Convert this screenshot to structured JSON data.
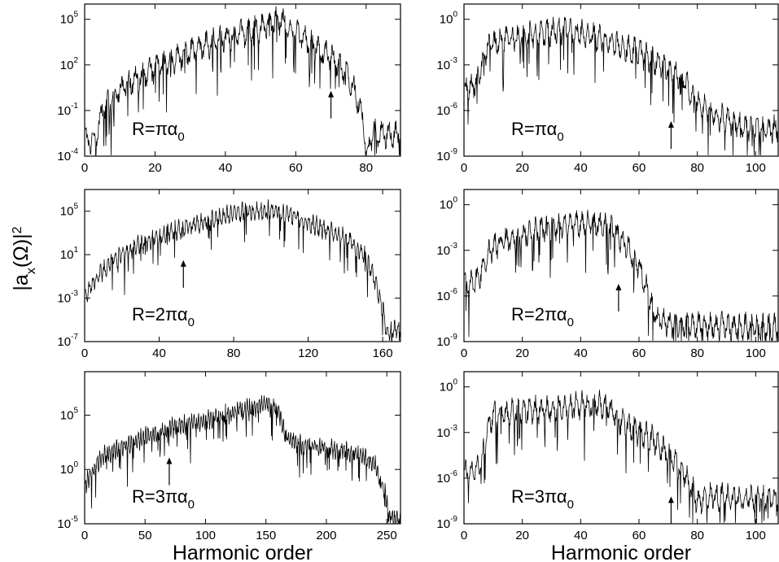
{
  "figure": {
    "ylabel": "|a_x(Ω)|²",
    "xlabel": "Harmonic order"
  },
  "chart_data": [
    {
      "type": "line",
      "panel": "left-top",
      "label": "R=πα0",
      "xlim": [
        0,
        90
      ],
      "x_ticks": [
        0,
        20,
        40,
        60,
        80
      ],
      "ylim_exp": [
        -4,
        6
      ],
      "y_tick_exps": [
        -4,
        -1,
        2,
        5
      ],
      "y_scale": "log",
      "arrow": {
        "x": 70,
        "y_exp": 0.3
      },
      "envelope": [
        [
          0,
          -3
        ],
        [
          3,
          -3
        ],
        [
          5,
          -1
        ],
        [
          10,
          0.4
        ],
        [
          20,
          1.8
        ],
        [
          30,
          2.9
        ],
        [
          40,
          3.8
        ],
        [
          50,
          4.4
        ],
        [
          55,
          5
        ],
        [
          58,
          4.5
        ],
        [
          65,
          3.3
        ],
        [
          70,
          2.5
        ],
        [
          75,
          1.2
        ],
        [
          78,
          -0.5
        ],
        [
          79.5,
          -2
        ],
        [
          80,
          -4
        ],
        [
          82,
          -2.5
        ],
        [
          85,
          -2.6
        ],
        [
          90,
          -2.6
        ]
      ]
    },
    {
      "type": "line",
      "panel": "right-top",
      "label": "R=πα0",
      "xlim": [
        0,
        108
      ],
      "x_ticks": [
        0,
        20,
        40,
        60,
        80,
        100
      ],
      "ylim_exp": [
        -9,
        1
      ],
      "y_tick_exps": [
        -9,
        -6,
        -3,
        0
      ],
      "y_scale": "log",
      "arrow": {
        "x": 71,
        "y_exp": -6.7
      },
      "envelope": [
        [
          0,
          -4.6
        ],
        [
          4,
          -4.3
        ],
        [
          6,
          -3
        ],
        [
          8,
          -1.8
        ],
        [
          15,
          -1.3
        ],
        [
          25,
          -1
        ],
        [
          35,
          -0.7
        ],
        [
          40,
          -0.9
        ],
        [
          50,
          -1.5
        ],
        [
          60,
          -2.2
        ],
        [
          70,
          -3.2
        ],
        [
          75,
          -4
        ],
        [
          80,
          -5.4
        ],
        [
          85,
          -6.3
        ],
        [
          90,
          -6.6
        ],
        [
          95,
          -7
        ],
        [
          100,
          -7.2
        ],
        [
          108,
          -7.2
        ]
      ]
    },
    {
      "type": "line",
      "panel": "left-middle",
      "label": "R=2πα0",
      "xlim": [
        0,
        170
      ],
      "x_ticks": [
        0,
        40,
        80,
        120,
        160
      ],
      "ylim_exp": [
        -7,
        7
      ],
      "y_tick_exps": [
        -7,
        -3,
        1,
        5
      ],
      "y_scale": "log",
      "arrow": {
        "x": 53,
        "y_exp": 0.5
      },
      "envelope": [
        [
          0,
          -2.8
        ],
        [
          5,
          -1.5
        ],
        [
          15,
          0.5
        ],
        [
          30,
          2
        ],
        [
          45,
          3
        ],
        [
          55,
          3.6
        ],
        [
          70,
          4.3
        ],
        [
          85,
          5
        ],
        [
          100,
          5.1
        ],
        [
          110,
          4.7
        ],
        [
          120,
          4
        ],
        [
          130,
          3.2
        ],
        [
          140,
          2.5
        ],
        [
          150,
          1
        ],
        [
          155,
          -1
        ],
        [
          160,
          -4
        ],
        [
          162,
          -6
        ],
        [
          165,
          -6
        ],
        [
          170,
          -6
        ]
      ]
    },
    {
      "type": "line",
      "panel": "right-middle",
      "label": "R=2πα0",
      "xlim": [
        0,
        108
      ],
      "x_ticks": [
        0,
        20,
        40,
        60,
        80,
        100
      ],
      "ylim_exp": [
        -9,
        1
      ],
      "y_tick_exps": [
        -9,
        -6,
        -3,
        0
      ],
      "y_scale": "log",
      "arrow": {
        "x": 53,
        "y_exp": -5.2
      },
      "envelope": [
        [
          0,
          -5.3
        ],
        [
          4,
          -5
        ],
        [
          7,
          -4
        ],
        [
          9,
          -3
        ],
        [
          12,
          -2.5
        ],
        [
          20,
          -2
        ],
        [
          35,
          -1.2
        ],
        [
          45,
          -1.3
        ],
        [
          50,
          -1.4
        ],
        [
          55,
          -2.5
        ],
        [
          60,
          -4
        ],
        [
          63,
          -5.8
        ],
        [
          66,
          -7.5
        ],
        [
          70,
          -7.8
        ],
        [
          80,
          -8
        ],
        [
          90,
          -8
        ],
        [
          100,
          -8.1
        ],
        [
          108,
          -8.1
        ]
      ]
    },
    {
      "type": "line",
      "panel": "left-bottom",
      "label": "R=3πα0",
      "xlim": [
        0,
        262
      ],
      "x_ticks": [
        0,
        50,
        100,
        150,
        200,
        250
      ],
      "ylim_exp": [
        -5,
        9
      ],
      "y_tick_exps": [
        -5,
        0,
        5
      ],
      "y_scale": "log",
      "arrow": {
        "x": 70,
        "y_exp": 1.1
      },
      "envelope": [
        [
          0,
          -1.5
        ],
        [
          5,
          -0.5
        ],
        [
          15,
          1.2
        ],
        [
          30,
          2
        ],
        [
          50,
          3
        ],
        [
          70,
          3.8
        ],
        [
          100,
          4.5
        ],
        [
          130,
          5.5
        ],
        [
          150,
          6
        ],
        [
          160,
          5.5
        ],
        [
          167,
          3
        ],
        [
          175,
          2.4
        ],
        [
          200,
          2
        ],
        [
          225,
          1.5
        ],
        [
          240,
          0.5
        ],
        [
          248,
          -2
        ],
        [
          252,
          -4
        ],
        [
          256,
          -4.5
        ],
        [
          262,
          -4.5
        ]
      ]
    },
    {
      "type": "line",
      "panel": "right-bottom",
      "label": "R=3πα0",
      "xlim": [
        0,
        108
      ],
      "x_ticks": [
        0,
        20,
        40,
        60,
        80,
        100
      ],
      "ylim_exp": [
        -9,
        1
      ],
      "y_tick_exps": [
        -9,
        -6,
        -3,
        0
      ],
      "y_scale": "log",
      "arrow": {
        "x": 71,
        "y_exp": -7.2
      },
      "envelope": [
        [
          0,
          -5.8
        ],
        [
          4,
          -5.5
        ],
        [
          6,
          -5
        ],
        [
          8,
          -3
        ],
        [
          10,
          -1.8
        ],
        [
          20,
          -1.6
        ],
        [
          30,
          -1.5
        ],
        [
          40,
          -1.2
        ],
        [
          45,
          -1.1
        ],
        [
          50,
          -1.5
        ],
        [
          55,
          -2.5
        ],
        [
          65,
          -3.5
        ],
        [
          70,
          -4.5
        ],
        [
          75,
          -5.5
        ],
        [
          80,
          -7.5
        ],
        [
          85,
          -7.2
        ],
        [
          90,
          -7.3
        ],
        [
          100,
          -7.3
        ],
        [
          108,
          -7.4
        ]
      ]
    }
  ]
}
